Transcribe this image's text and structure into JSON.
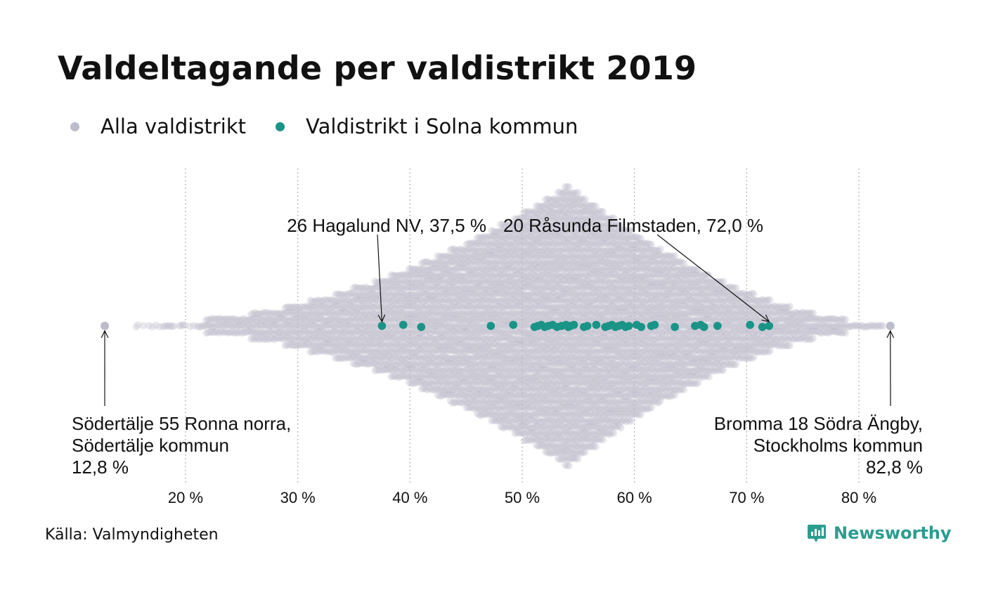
{
  "title": "Valdeltagande per valdistrikt 2019",
  "legend": [
    {
      "label": "Alla valdistrikt",
      "color": "#bdbccb"
    },
    {
      "label": "Valdistrikt i Solna kommun",
      "color": "#1a9487"
    }
  ],
  "source": "Källa: Valmyndigheten",
  "brand": {
    "name": "Newsworthy",
    "color": "#2a9d8f",
    "icon": "newsworthy-logo-icon"
  },
  "chart_data": {
    "type": "scatter",
    "subtype": "beeswarm",
    "xlim": [
      12,
      84
    ],
    "x_ticks": [
      20,
      30,
      40,
      50,
      60,
      70,
      80
    ],
    "x_tick_labels": [
      "20 %",
      "30 %",
      "40 %",
      "50 %",
      "60 %",
      "70 %",
      "80 %"
    ],
    "grid": "vertical-dotted",
    "series": [
      {
        "name": "Alla valdistrikt",
        "color": "#bdbccb",
        "distribution": "approx. 54 % median, range 12.8–82.8",
        "extremes": [
          12.8,
          82.8
        ]
      },
      {
        "name": "Valdistrikt i Solna kommun",
        "color": "#1a9487",
        "values": [
          37.5,
          39.4,
          41.0,
          47.2,
          49.2,
          51.1,
          51.4,
          51.7,
          52.0,
          52.3,
          52.7,
          53.1,
          53.5,
          53.9,
          54.1,
          54.3,
          54.6,
          55.5,
          55.8,
          56.6,
          57.4,
          57.7,
          58.0,
          58.3,
          58.6,
          58.9,
          59.2,
          59.5,
          60.2,
          60.6,
          61.5,
          61.8,
          63.6,
          65.4,
          65.9,
          66.2,
          67.4,
          70.3,
          71.4,
          72.0
        ]
      }
    ],
    "annotations": [
      {
        "lines": [
          "26 Hagalund NV, 37,5 %"
        ],
        "x": 37.5
      },
      {
        "lines": [
          "20 Råsunda Filmstaden, 72,0 %"
        ],
        "x": 72.0
      },
      {
        "lines": [
          "Södertälje 55 Ronna norra,",
          "Södertälje kommun",
          "12,8 %"
        ],
        "x": 12.8
      },
      {
        "lines": [
          "Bromma 18 Södra Ängby,",
          "Stockholms kommun",
          "82,8 %"
        ],
        "x": 82.8
      }
    ]
  }
}
